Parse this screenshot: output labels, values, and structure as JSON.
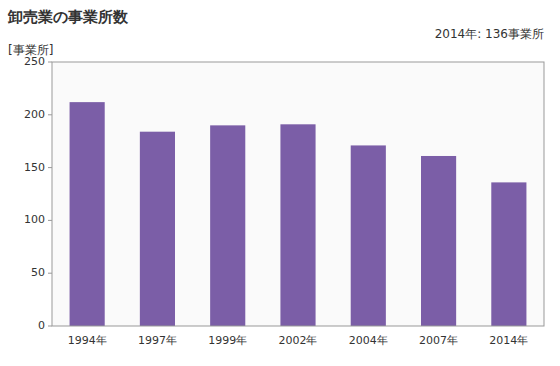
{
  "chart_data": {
    "type": "bar",
    "title": "卸売業の事業所数",
    "ylabel": "[事業所]",
    "annotation": "2014年: 136事業所",
    "categories": [
      "1994年",
      "1997年",
      "1999年",
      "2002年",
      "2004年",
      "2007年",
      "2014年"
    ],
    "values": [
      212,
      184,
      190,
      191,
      171,
      161,
      136
    ],
    "color": "#7B5EA7",
    "ylim": [
      0,
      250
    ],
    "yticks": [
      0,
      50,
      100,
      150,
      200,
      250
    ],
    "grid": false
  }
}
